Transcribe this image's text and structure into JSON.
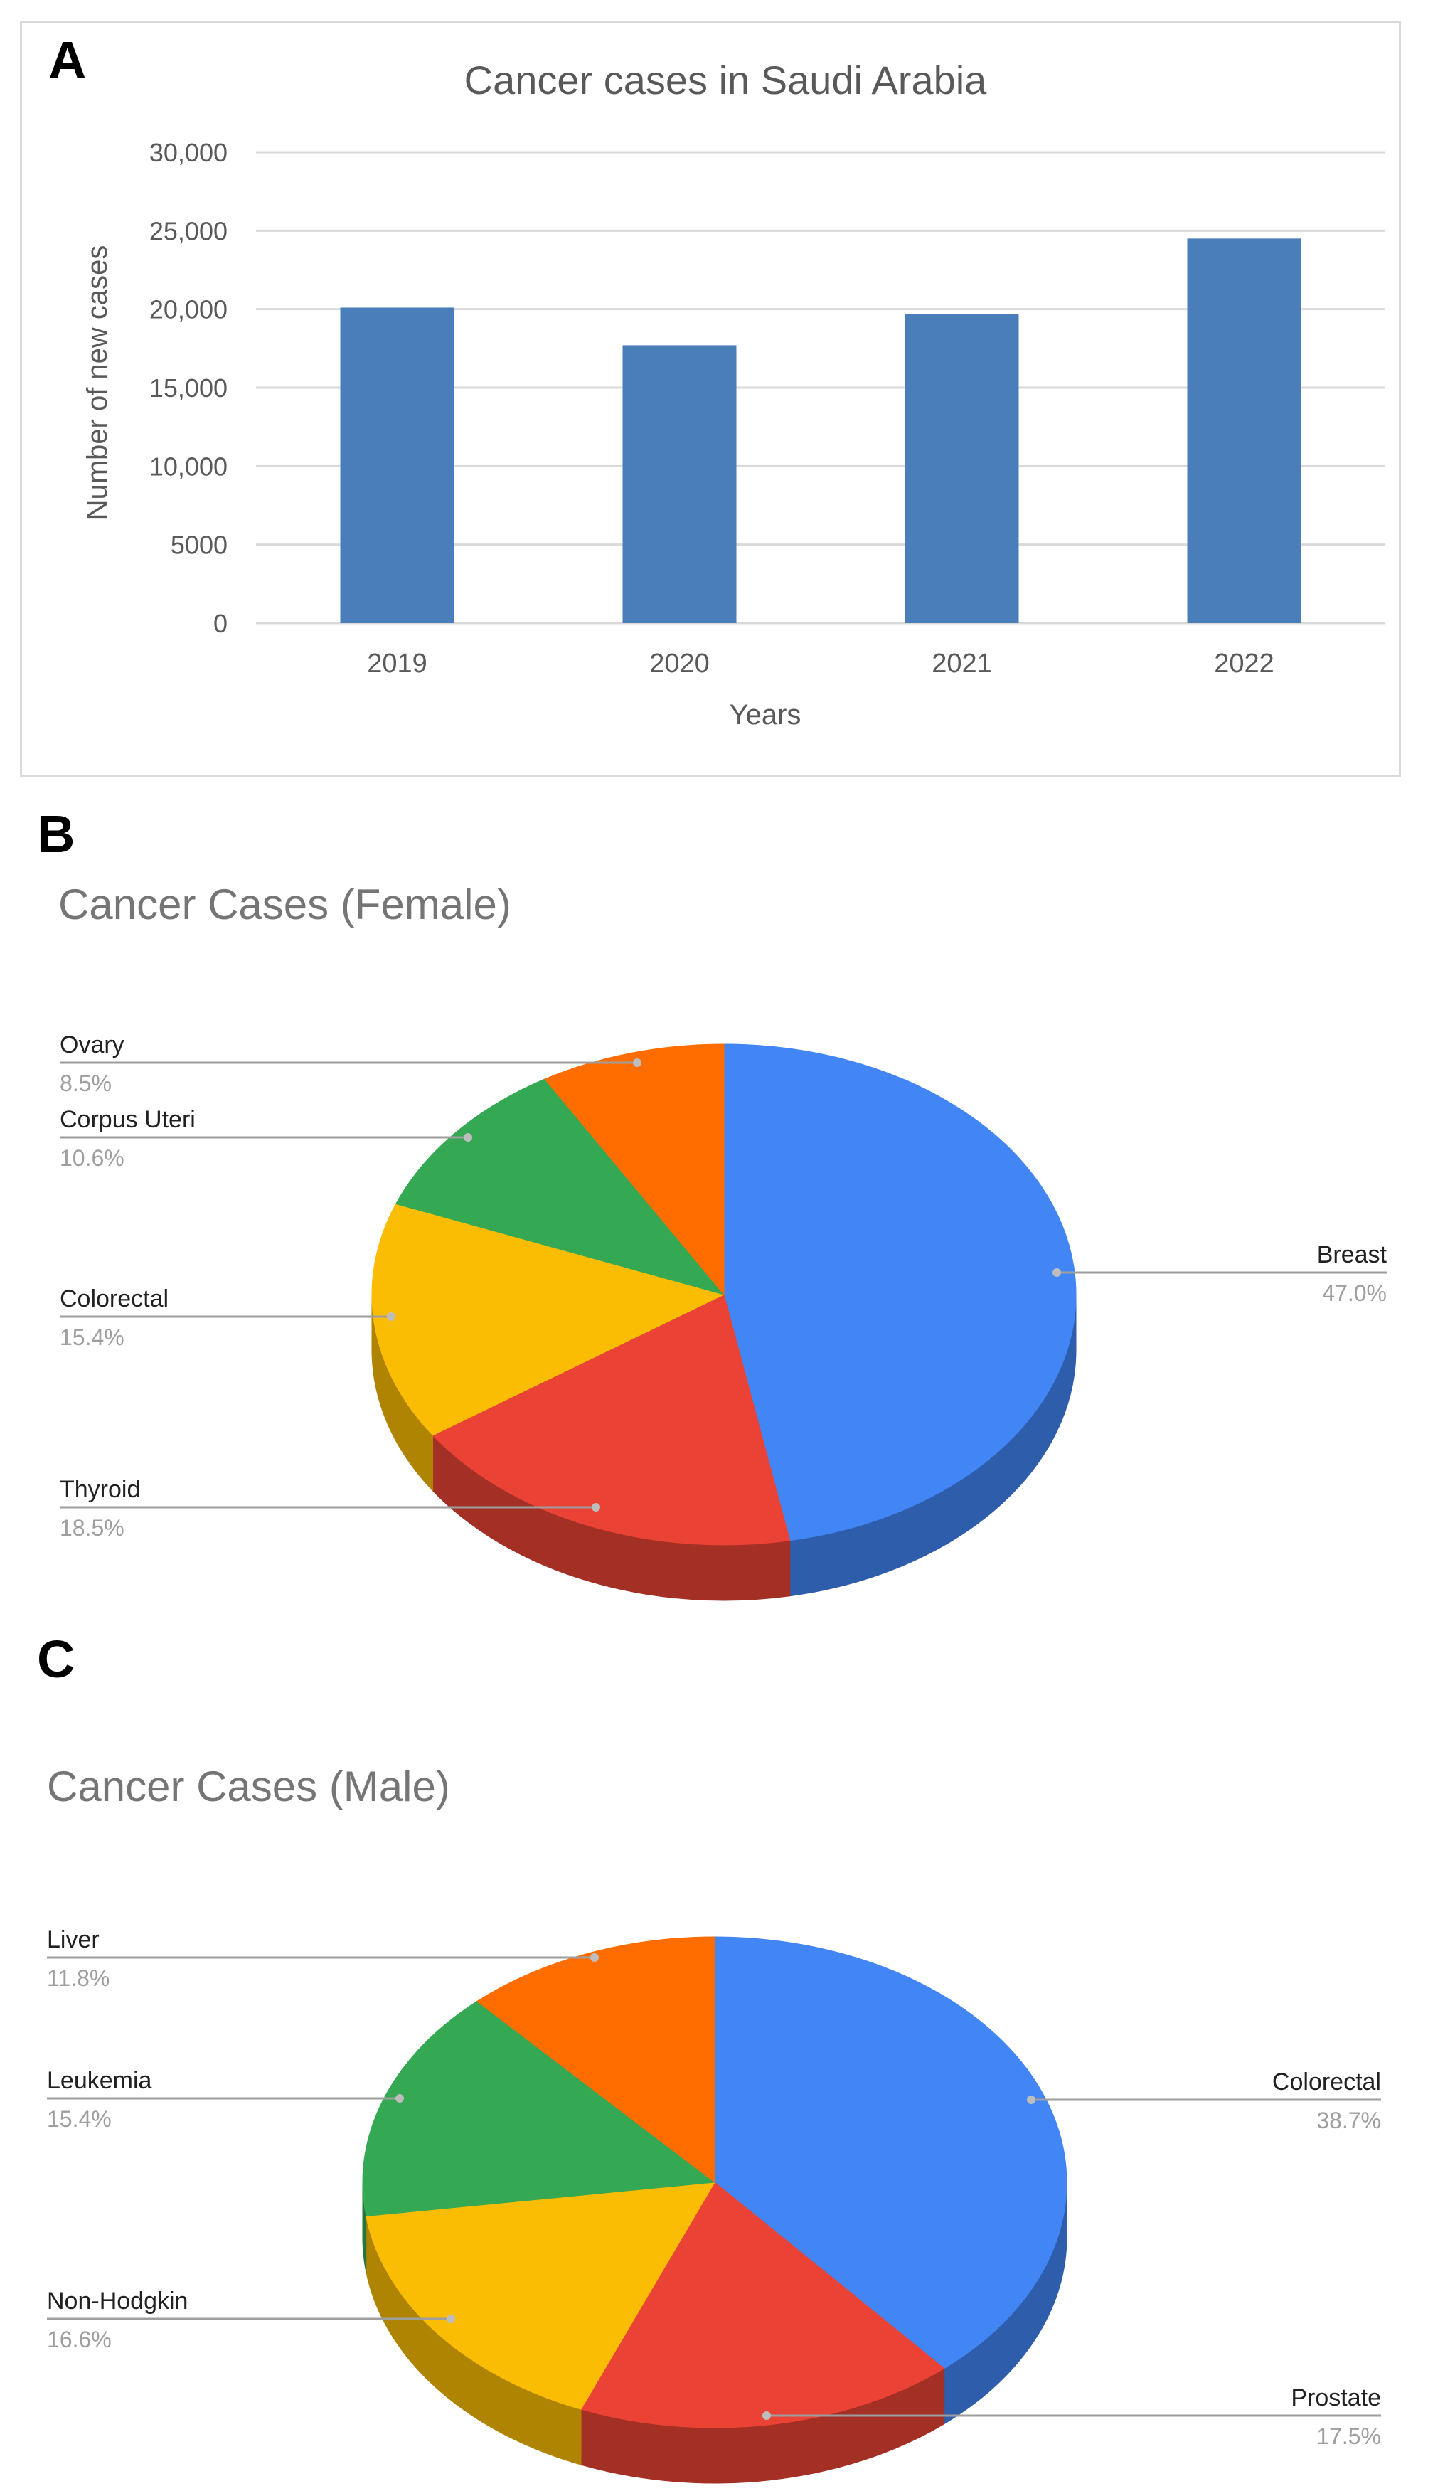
{
  "panels": {
    "a": "A",
    "b": "B",
    "c": "C"
  },
  "colors": {
    "bar": "#4a7ebb",
    "blue": "#4285f4",
    "red": "#ea4335",
    "yellow": "#fbbc04",
    "green": "#34a853",
    "orange": "#ff6d01",
    "grid": "#d9d9d9"
  },
  "chart_data": [
    {
      "type": "bar",
      "title": "Cancer cases in Saudi Arabia",
      "xlabel": "Years",
      "ylabel": "Number of new cases",
      "categories": [
        "2019",
        "2020",
        "2021",
        "2022"
      ],
      "values": [
        20100,
        17700,
        19700,
        24500
      ],
      "ylim": [
        0,
        30000
      ],
      "yticks": [
        0,
        5000,
        10000,
        15000,
        20000,
        25000,
        30000
      ],
      "ytick_labels": [
        "0",
        "5000",
        "10,000",
        "15,000",
        "20,000",
        "25,000",
        "30,000"
      ],
      "grid": true
    },
    {
      "type": "pie",
      "title": "Cancer Cases (Female)",
      "style": "3d",
      "slices": [
        {
          "label": "Breast",
          "value": 47.0,
          "pct": "47.0%",
          "color": "#4285f4"
        },
        {
          "label": "Thyroid",
          "value": 18.5,
          "pct": "18.5%",
          "color": "#ea4335"
        },
        {
          "label": "Colorectal",
          "value": 15.4,
          "pct": "15.4%",
          "color": "#fbbc04"
        },
        {
          "label": "Corpus Uteri",
          "value": 10.6,
          "pct": "10.6%",
          "color": "#34a853"
        },
        {
          "label": "Ovary",
          "value": 8.5,
          "pct": "8.5%",
          "color": "#ff6d01"
        }
      ]
    },
    {
      "type": "pie",
      "title": "Cancer Cases (Male)",
      "style": "3d",
      "slices": [
        {
          "label": "Colorectal",
          "value": 38.7,
          "pct": "38.7%",
          "color": "#4285f4"
        },
        {
          "label": "Prostate",
          "value": 17.5,
          "pct": "17.5%",
          "color": "#ea4335"
        },
        {
          "label": "Non-Hodgkin",
          "value": 16.6,
          "pct": "16.6%",
          "color": "#fbbc04"
        },
        {
          "label": "Leukemia",
          "value": 15.4,
          "pct": "15.4%",
          "color": "#34a853"
        },
        {
          "label": "Liver",
          "value": 11.8,
          "pct": "11.8%",
          "color": "#ff6d01"
        }
      ]
    }
  ]
}
